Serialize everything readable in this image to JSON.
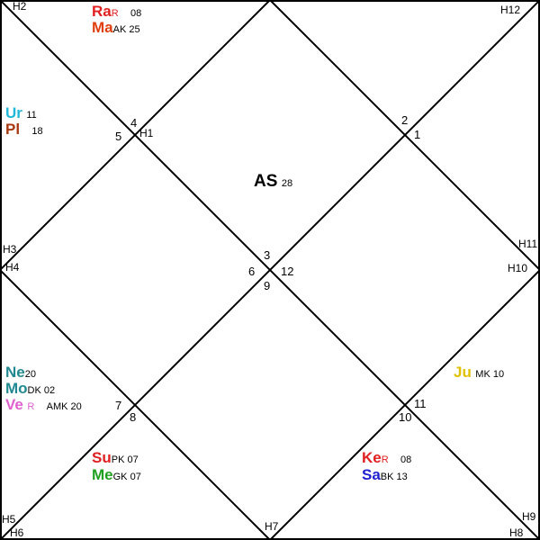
{
  "house_labels": {
    "H1": "H1",
    "H2": "H2",
    "H3": "H3",
    "H4": "H4",
    "H5": "H5",
    "H6": "H6",
    "H7": "H7",
    "H8": "H8",
    "H9": "H9",
    "H10": "H10",
    "H11": "H11",
    "H12": "H12"
  },
  "sign_numbers": {
    "n4": "4",
    "n5": "5",
    "n2": "2",
    "n1": "1",
    "n3": "3",
    "n6": "6",
    "n12": "12",
    "n9": "9",
    "n7": "7",
    "n8": "8",
    "n11": "11",
    "n10": "10"
  },
  "ascendant": {
    "label": "AS",
    "degree": "28"
  },
  "planets": {
    "ra": {
      "abbr": "Ra",
      "retro": "R",
      "meta": "08",
      "color": "#e02020"
    },
    "ma": {
      "abbr": "Ma",
      "meta": "AK 25",
      "color": "#e04010"
    },
    "ur": {
      "abbr": "Ur",
      "meta": "11",
      "color": "#20b8d8"
    },
    "pl": {
      "abbr": "Pl",
      "meta": "18",
      "color": "#a83810"
    },
    "ne": {
      "abbr": "Ne",
      "meta": "20",
      "color": "#208890"
    },
    "mo": {
      "abbr": "Mo",
      "meta": "DK 02",
      "color": "#208890"
    },
    "ve": {
      "abbr": "Ve",
      "retro": "R",
      "meta": "AMK 20",
      "color": "#e060d0"
    },
    "su": {
      "abbr": "Su",
      "meta": "PK 07",
      "color": "#e02020"
    },
    "me": {
      "abbr": "Me",
      "meta": "GK 07",
      "color": "#20a020"
    },
    "ke": {
      "abbr": "Ke",
      "retro": "R",
      "meta": "08",
      "color": "#e02020"
    },
    "sa": {
      "abbr": "Sa",
      "meta": "BK 13",
      "color": "#2020d0"
    },
    "ju": {
      "abbr": "Ju",
      "meta": "MK 10",
      "color": "#e0c000"
    }
  }
}
